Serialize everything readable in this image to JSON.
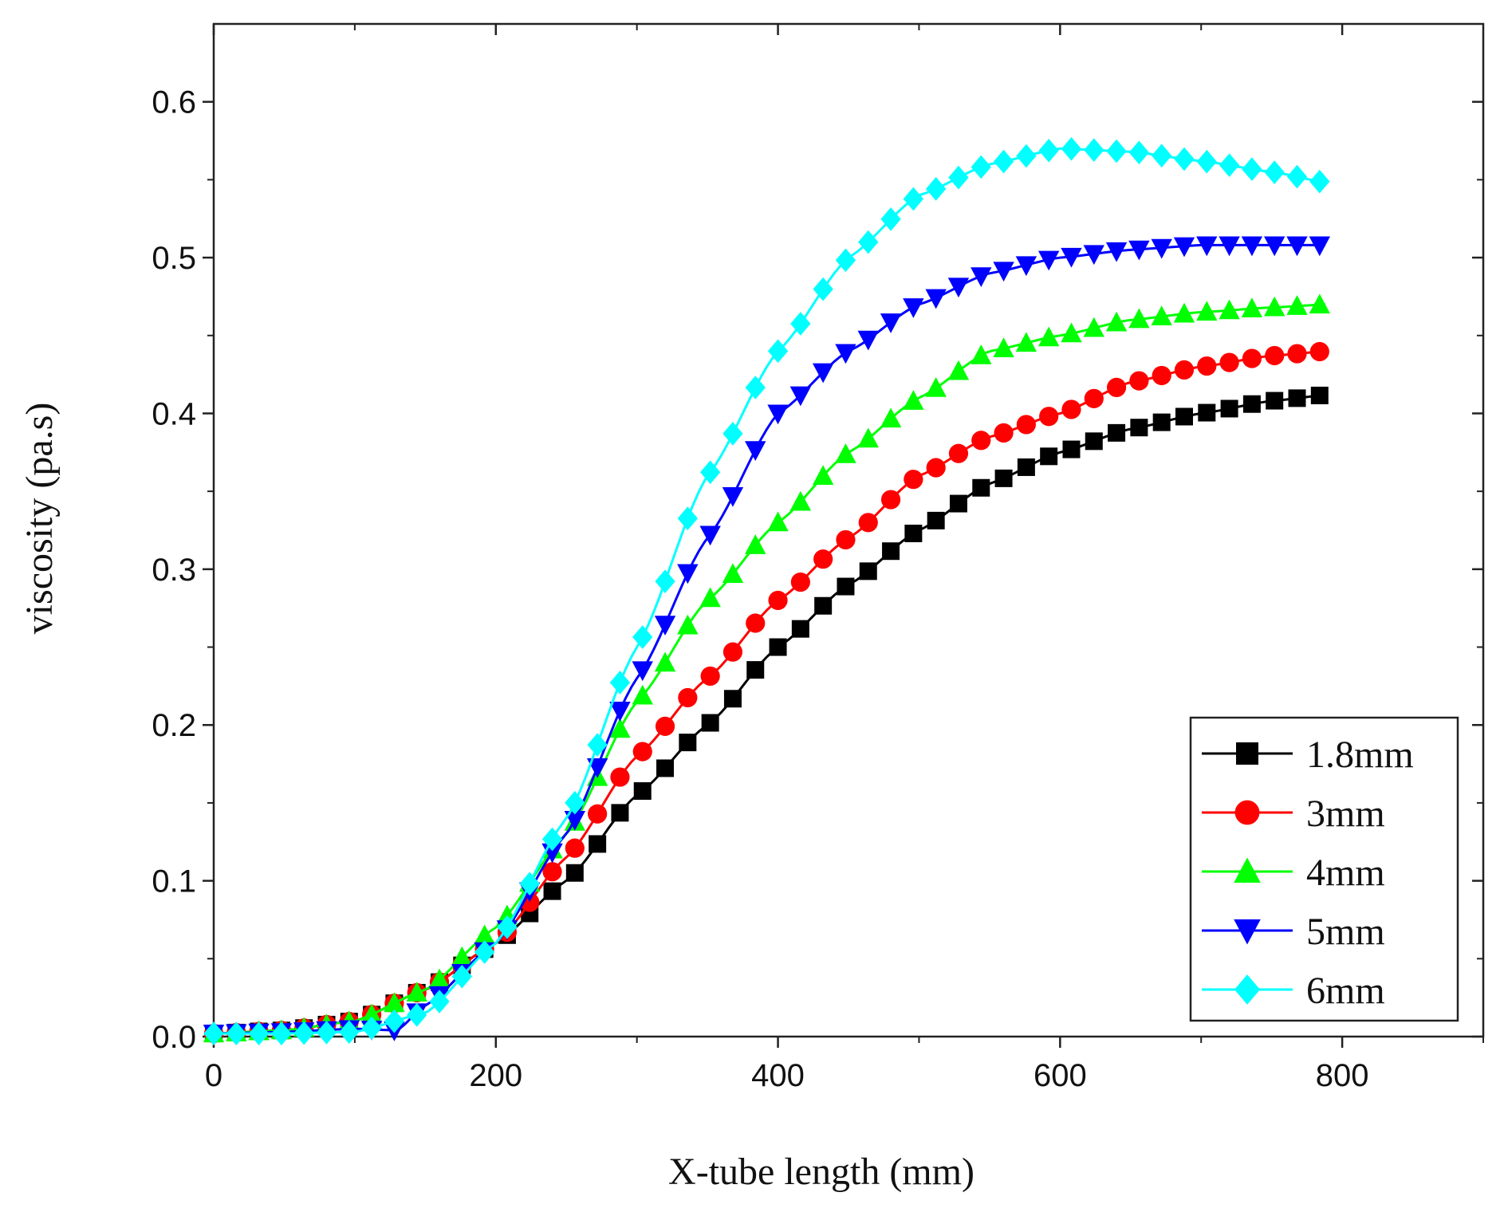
{
  "chart_data": {
    "type": "line",
    "title": "",
    "xlabel": "X-tube length (mm)",
    "ylabel": "viscosity (pa.s)",
    "xlim": [
      0,
      900
    ],
    "ylim": [
      0,
      0.65
    ],
    "xticks": [
      0,
      200,
      400,
      600,
      800
    ],
    "xtick_labels": [
      "0",
      "200",
      "400",
      "600",
      "800"
    ],
    "yticks": [
      0.0,
      0.1,
      0.2,
      0.3,
      0.4,
      0.5,
      0.6
    ],
    "ytick_labels": [
      "0.0",
      "0.1",
      "0.2",
      "0.3",
      "0.4",
      "0.5",
      "0.6"
    ],
    "legend_position": "bottom-right",
    "grid": false,
    "series": [
      {
        "name": "1.8mm",
        "color": "#000000",
        "marker": "square",
        "points": [
          [
            0,
            0.002
          ],
          [
            50,
            0.004
          ],
          [
            100,
            0.01
          ],
          [
            150,
            0.03
          ],
          [
            200,
            0.06
          ],
          [
            250,
            0.1
          ],
          [
            300,
            0.155
          ],
          [
            350,
            0.2
          ],
          [
            400,
            0.25
          ],
          [
            450,
            0.29
          ],
          [
            500,
            0.325
          ],
          [
            550,
            0.355
          ],
          [
            600,
            0.375
          ],
          [
            650,
            0.39
          ],
          [
            700,
            0.4
          ],
          [
            750,
            0.408
          ],
          [
            790,
            0.412
          ]
        ]
      },
      {
        "name": "3mm",
        "color": "#ff0000",
        "marker": "circle",
        "points": [
          [
            0,
            0.002
          ],
          [
            50,
            0.004
          ],
          [
            100,
            0.01
          ],
          [
            150,
            0.03
          ],
          [
            200,
            0.06
          ],
          [
            250,
            0.115
          ],
          [
            300,
            0.18
          ],
          [
            350,
            0.23
          ],
          [
            400,
            0.28
          ],
          [
            450,
            0.32
          ],
          [
            500,
            0.36
          ],
          [
            550,
            0.385
          ],
          [
            600,
            0.4
          ],
          [
            650,
            0.42
          ],
          [
            700,
            0.43
          ],
          [
            750,
            0.437
          ],
          [
            790,
            0.44
          ]
        ]
      },
      {
        "name": "4mm",
        "color": "#00ff00",
        "marker": "triangle-up",
        "points": [
          [
            0,
            0.002
          ],
          [
            50,
            0.004
          ],
          [
            100,
            0.01
          ],
          [
            150,
            0.03
          ],
          [
            200,
            0.07
          ],
          [
            250,
            0.13
          ],
          [
            300,
            0.215
          ],
          [
            350,
            0.28
          ],
          [
            400,
            0.33
          ],
          [
            450,
            0.375
          ],
          [
            500,
            0.41
          ],
          [
            550,
            0.44
          ],
          [
            600,
            0.45
          ],
          [
            650,
            0.46
          ],
          [
            700,
            0.465
          ],
          [
            750,
            0.468
          ],
          [
            790,
            0.47
          ]
        ]
      },
      {
        "name": "5mm",
        "color": "#0000ff",
        "marker": "triangle-down",
        "points": [
          [
            0,
            0.002
          ],
          [
            50,
            0.003
          ],
          [
            100,
            0.005
          ],
          [
            130,
            0.004
          ],
          [
            150,
            0.02
          ],
          [
            200,
            0.06
          ],
          [
            250,
            0.13
          ],
          [
            300,
            0.23
          ],
          [
            350,
            0.32
          ],
          [
            400,
            0.4
          ],
          [
            450,
            0.44
          ],
          [
            500,
            0.47
          ],
          [
            550,
            0.49
          ],
          [
            600,
            0.5
          ],
          [
            650,
            0.505
          ],
          [
            700,
            0.508
          ],
          [
            750,
            0.508
          ],
          [
            790,
            0.508
          ]
        ]
      },
      {
        "name": "6mm",
        "color": "#00ffff",
        "marker": "diamond",
        "points": [
          [
            0,
            0.002
          ],
          [
            50,
            0.002
          ],
          [
            100,
            0.003
          ],
          [
            150,
            0.015
          ],
          [
            200,
            0.06
          ],
          [
            250,
            0.14
          ],
          [
            300,
            0.25
          ],
          [
            350,
            0.36
          ],
          [
            400,
            0.44
          ],
          [
            450,
            0.5
          ],
          [
            500,
            0.54
          ],
          [
            550,
            0.56
          ],
          [
            600,
            0.57
          ],
          [
            650,
            0.568
          ],
          [
            700,
            0.562
          ],
          [
            750,
            0.555
          ],
          [
            790,
            0.548
          ]
        ]
      }
    ]
  }
}
